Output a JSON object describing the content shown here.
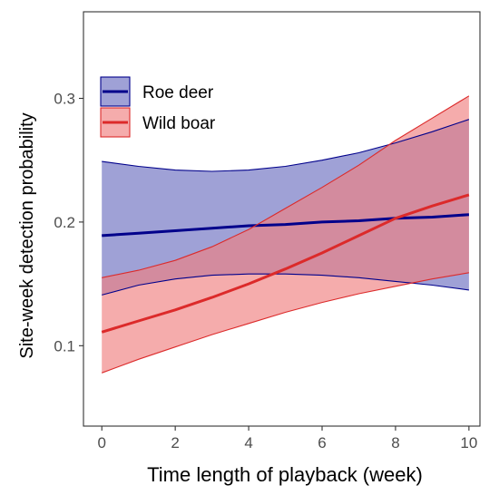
{
  "chart_data": {
    "type": "line",
    "title": "",
    "xlabel": "Time length of playback (week)",
    "ylabel": "Site-week detection probability",
    "xlim": [
      -0.5,
      10.3
    ],
    "ylim": [
      0.035,
      0.37
    ],
    "x_ticks": [
      0,
      2,
      4,
      6,
      8,
      10
    ],
    "y_ticks": [
      0.1,
      0.2,
      0.3
    ],
    "x_tick_labels": [
      "0",
      "2",
      "4",
      "6",
      "8",
      "10"
    ],
    "y_tick_labels": [
      "0.1",
      "0.2",
      "0.3"
    ],
    "grid": false,
    "legend_position": "top-left",
    "x": [
      0,
      1,
      2,
      3,
      4,
      5,
      6,
      7,
      8,
      9,
      10
    ],
    "series": [
      {
        "name": "Roe deer",
        "color": "#00008b",
        "fill": "#6b6fc0",
        "values": [
          0.189,
          0.191,
          0.193,
          0.195,
          0.197,
          0.198,
          0.2,
          0.201,
          0.203,
          0.204,
          0.206
        ],
        "lower": [
          0.141,
          0.149,
          0.154,
          0.157,
          0.158,
          0.158,
          0.157,
          0.155,
          0.152,
          0.149,
          0.145
        ],
        "upper": [
          0.249,
          0.245,
          0.242,
          0.241,
          0.242,
          0.245,
          0.25,
          0.256,
          0.264,
          0.273,
          0.283
        ]
      },
      {
        "name": "Wild boar",
        "color": "#dc2a2a",
        "fill": "#f08080",
        "values": [
          0.111,
          0.12,
          0.129,
          0.139,
          0.15,
          0.162,
          0.175,
          0.189,
          0.203,
          0.213,
          0.222
        ],
        "lower": [
          0.078,
          0.089,
          0.099,
          0.109,
          0.118,
          0.127,
          0.135,
          0.142,
          0.148,
          0.154,
          0.159
        ],
        "upper": [
          0.155,
          0.161,
          0.169,
          0.18,
          0.194,
          0.211,
          0.228,
          0.246,
          0.266,
          0.284,
          0.302
        ]
      }
    ]
  }
}
